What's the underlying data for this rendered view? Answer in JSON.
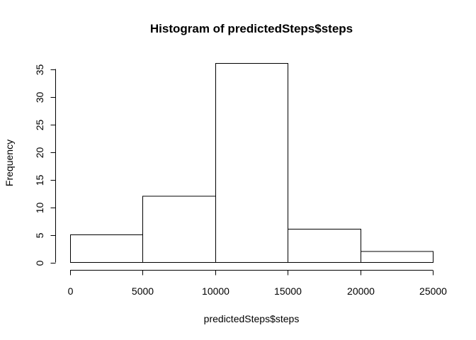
{
  "chart_data": {
    "type": "bar",
    "title": "Histogram of predictedSteps$steps",
    "xlabel": "predictedSteps$steps",
    "ylabel": "Frequency",
    "bins": [
      {
        "from": 0,
        "to": 5000,
        "count": 5
      },
      {
        "from": 5000,
        "to": 10000,
        "count": 12
      },
      {
        "from": 10000,
        "to": 15000,
        "count": 36
      },
      {
        "from": 15000,
        "to": 20000,
        "count": 6
      },
      {
        "from": 20000,
        "to": 25000,
        "count": 2
      }
    ],
    "xlim": [
      0,
      25000
    ],
    "ylim": [
      0,
      35
    ],
    "xticks": [
      "0",
      "5000",
      "10000",
      "15000",
      "20000",
      "25000"
    ],
    "yticks": [
      "0",
      "5",
      "10",
      "15",
      "20",
      "25",
      "30",
      "35"
    ],
    "grid": false
  }
}
